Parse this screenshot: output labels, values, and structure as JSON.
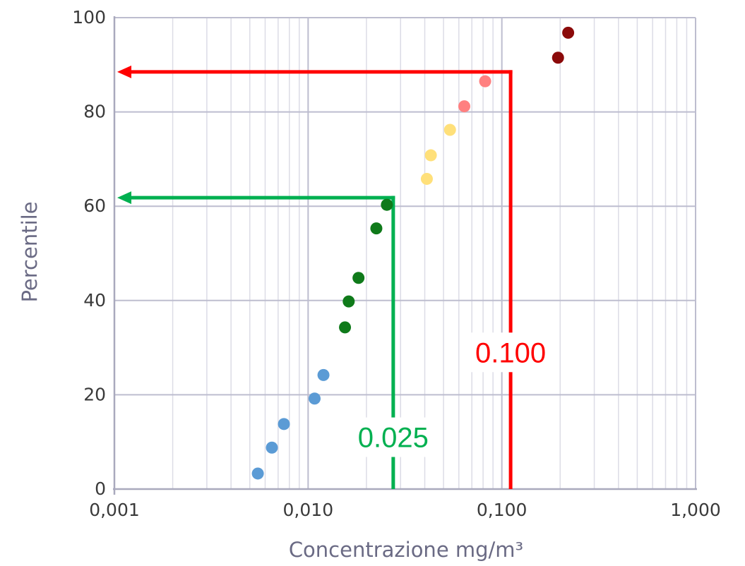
{
  "chart_data": {
    "type": "scatter",
    "title": "",
    "xlabel": "Concentrazione mg/m³",
    "ylabel": "Percentile",
    "x_scale": "log",
    "xlim": [
      0.001,
      1
    ],
    "ylim": [
      0,
      100
    ],
    "x_tick_values": [
      0.001,
      0.01,
      0.1,
      1
    ],
    "x_tick_labels": [
      "0,001",
      "0,010",
      "0,100",
      "1,000"
    ],
    "y_ticks": [
      0,
      20,
      40,
      60,
      80,
      100
    ],
    "y_tick_labels": [
      "0",
      "20",
      "40",
      "60",
      "80",
      "100"
    ],
    "grid": true,
    "points": [
      {
        "x": 0.0055,
        "y": 3.3,
        "color": "#5b9bd5"
      },
      {
        "x": 0.0065,
        "y": 8.8,
        "color": "#5b9bd5"
      },
      {
        "x": 0.0075,
        "y": 13.8,
        "color": "#5b9bd5"
      },
      {
        "x": 0.0108,
        "y": 19.2,
        "color": "#5b9bd5"
      },
      {
        "x": 0.012,
        "y": 24.2,
        "color": "#5b9bd5"
      },
      {
        "x": 0.0155,
        "y": 34.3,
        "color": "#0f7a1a"
      },
      {
        "x": 0.0162,
        "y": 39.8,
        "color": "#0f7a1a"
      },
      {
        "x": 0.0182,
        "y": 44.8,
        "color": "#0f7a1a"
      },
      {
        "x": 0.0225,
        "y": 55.3,
        "color": "#0f7a1a"
      },
      {
        "x": 0.0255,
        "y": 60.3,
        "color": "#0f7a1a"
      },
      {
        "x": 0.041,
        "y": 65.8,
        "color": "#ffe07a"
      },
      {
        "x": 0.043,
        "y": 70.8,
        "color": "#ffe07a"
      },
      {
        "x": 0.054,
        "y": 76.2,
        "color": "#ffe07a"
      },
      {
        "x": 0.064,
        "y": 81.2,
        "color": "#ff8080"
      },
      {
        "x": 0.082,
        "y": 86.5,
        "color": "#ff8080"
      },
      {
        "x": 0.195,
        "y": 91.5,
        "color": "#8b0a0a"
      },
      {
        "x": 0.22,
        "y": 96.8,
        "color": "#8b0a0a"
      }
    ],
    "thresholds": [
      {
        "label": "0.025",
        "x": 0.0275,
        "y": 61.8,
        "color": "#00b050"
      },
      {
        "label": "0.100",
        "x": 0.111,
        "y": 88.5,
        "color": "#ff0000"
      }
    ]
  }
}
